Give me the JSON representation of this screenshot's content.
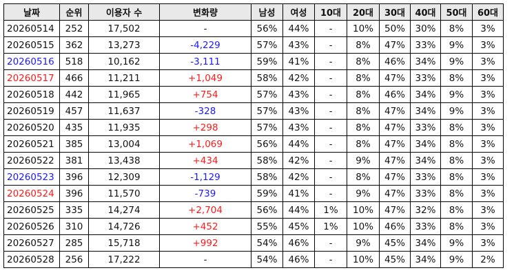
{
  "colors": {
    "sat": "#1a1aff",
    "sun": "#ff1a1a",
    "increase": "#ff1a1a",
    "decrease": "#1a1aff",
    "header_bg": "#e9e9e9"
  },
  "headers": [
    "날짜",
    "순위",
    "이용자 수",
    "변화량",
    "남성",
    "여성",
    "10대",
    "20대",
    "30대",
    "40대",
    "50대",
    "60대"
  ],
  "rows": [
    {
      "date": "20260514",
      "date_color": "normal",
      "rank": "252",
      "users": "17,502",
      "change": "-",
      "change_color": "normal",
      "male": "56%",
      "female": "44%",
      "a10": "-",
      "a20": "10%",
      "a30": "50%",
      "a40": "30%",
      "a50": "8%",
      "a60": "3%"
    },
    {
      "date": "20260515",
      "date_color": "normal",
      "rank": "362",
      "users": "13,273",
      "change": "-4,229",
      "change_color": "blue",
      "male": "57%",
      "female": "43%",
      "a10": "-",
      "a20": "8%",
      "a30": "47%",
      "a40": "33%",
      "a50": "9%",
      "a60": "3%"
    },
    {
      "date": "20260516",
      "date_color": "blue",
      "rank": "518",
      "users": "10,162",
      "change": "-3,111",
      "change_color": "blue",
      "male": "59%",
      "female": "41%",
      "a10": "-",
      "a20": "8%",
      "a30": "46%",
      "a40": "34%",
      "a50": "9%",
      "a60": "3%"
    },
    {
      "date": "20260517",
      "date_color": "red",
      "rank": "466",
      "users": "11,211",
      "change": "+1,049",
      "change_color": "red",
      "male": "58%",
      "female": "42%",
      "a10": "-",
      "a20": "8%",
      "a30": "47%",
      "a40": "33%",
      "a50": "8%",
      "a60": "3%"
    },
    {
      "date": "20260518",
      "date_color": "normal",
      "rank": "442",
      "users": "11,965",
      "change": "+754",
      "change_color": "red",
      "male": "57%",
      "female": "43%",
      "a10": "-",
      "a20": "8%",
      "a30": "46%",
      "a40": "34%",
      "a50": "9%",
      "a60": "3%"
    },
    {
      "date": "20260519",
      "date_color": "normal",
      "rank": "457",
      "users": "11,637",
      "change": "-328",
      "change_color": "blue",
      "male": "57%",
      "female": "43%",
      "a10": "-",
      "a20": "8%",
      "a30": "47%",
      "a40": "34%",
      "a50": "9%",
      "a60": "3%"
    },
    {
      "date": "20260520",
      "date_color": "normal",
      "rank": "435",
      "users": "11,935",
      "change": "+298",
      "change_color": "red",
      "male": "57%",
      "female": "43%",
      "a10": "-",
      "a20": "8%",
      "a30": "47%",
      "a40": "33%",
      "a50": "8%",
      "a60": "3%"
    },
    {
      "date": "20260521",
      "date_color": "normal",
      "rank": "385",
      "users": "13,004",
      "change": "+1,069",
      "change_color": "red",
      "male": "56%",
      "female": "44%",
      "a10": "-",
      "a20": "8%",
      "a30": "47%",
      "a40": "34%",
      "a50": "8%",
      "a60": "3%"
    },
    {
      "date": "20260522",
      "date_color": "normal",
      "rank": "381",
      "users": "13,438",
      "change": "+434",
      "change_color": "red",
      "male": "58%",
      "female": "42%",
      "a10": "-",
      "a20": "9%",
      "a30": "47%",
      "a40": "34%",
      "a50": "8%",
      "a60": "3%"
    },
    {
      "date": "20260523",
      "date_color": "blue",
      "rank": "396",
      "users": "12,309",
      "change": "-1,129",
      "change_color": "blue",
      "male": "58%",
      "female": "42%",
      "a10": "-",
      "a20": "8%",
      "a30": "47%",
      "a40": "33%",
      "a50": "8%",
      "a60": "3%"
    },
    {
      "date": "20260524",
      "date_color": "red",
      "rank": "396",
      "users": "11,570",
      "change": "-739",
      "change_color": "blue",
      "male": "59%",
      "female": "41%",
      "a10": "-",
      "a20": "9%",
      "a30": "47%",
      "a40": "33%",
      "a50": "8%",
      "a60": "3%"
    },
    {
      "date": "20260525",
      "date_color": "normal",
      "rank": "335",
      "users": "14,274",
      "change": "+2,704",
      "change_color": "red",
      "male": "56%",
      "female": "44%",
      "a10": "1%",
      "a20": "10%",
      "a30": "47%",
      "a40": "32%",
      "a50": "8%",
      "a60": "3%"
    },
    {
      "date": "20260526",
      "date_color": "normal",
      "rank": "310",
      "users": "14,726",
      "change": "+452",
      "change_color": "red",
      "male": "55%",
      "female": "45%",
      "a10": "1%",
      "a20": "10%",
      "a30": "46%",
      "a40": "33%",
      "a50": "8%",
      "a60": "3%"
    },
    {
      "date": "20260527",
      "date_color": "normal",
      "rank": "285",
      "users": "15,718",
      "change": "+992",
      "change_color": "red",
      "male": "54%",
      "female": "46%",
      "a10": "-",
      "a20": "9%",
      "a30": "45%",
      "a40": "34%",
      "a50": "9%",
      "a60": "3%"
    },
    {
      "date": "20260528",
      "date_color": "normal",
      "rank": "256",
      "users": "17,222",
      "change": "-",
      "change_color": "normal",
      "male": "54%",
      "female": "46%",
      "a10": "-",
      "a20": "10%",
      "a30": "45%",
      "a40": "34%",
      "a50": "9%",
      "a60": "2%"
    }
  ]
}
